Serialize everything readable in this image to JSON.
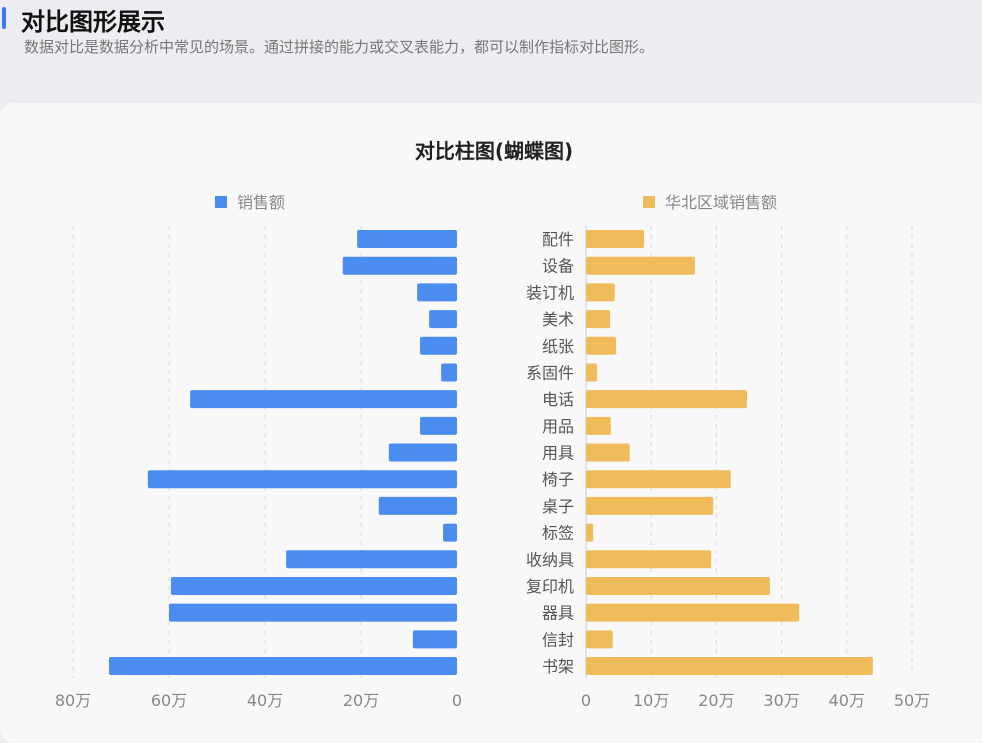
{
  "header": {
    "title": "对比图形展示",
    "subtitle": "数据对比是数据分析中常见的场景。通过拼接的能力或交叉表能力，都可以制作指标对比图形。"
  },
  "chart_data": {
    "type": "bar",
    "title": "对比柱图(蝴蝶图)",
    "categories": [
      "配件",
      "设备",
      "装订机",
      "美术",
      "纸张",
      "系固件",
      "电话",
      "用品",
      "用具",
      "椅子",
      "桌子",
      "标签",
      "收纳具",
      "复印机",
      "器具",
      "信封",
      "书架"
    ],
    "series": [
      {
        "name": "销售额",
        "color": "#4a8cf0",
        "direction": "left",
        "unit": "万",
        "values": [
          20.8,
          23.8,
          8.3,
          5.8,
          7.7,
          3.3,
          55.6,
          7.7,
          14.2,
          64.4,
          16.3,
          2.9,
          35.6,
          59.6,
          60.0,
          9.2,
          72.5
        ],
        "xlim": [
          0,
          80
        ],
        "ticks": [
          "0",
          "20万",
          "40万",
          "60万",
          "80万"
        ],
        "tick_values": [
          0,
          20,
          40,
          60,
          80
        ]
      },
      {
        "name": "华北区域销售额",
        "color": "#efbb5b",
        "direction": "right",
        "unit": "万",
        "values": [
          8.9,
          16.7,
          4.4,
          3.7,
          4.6,
          1.7,
          24.7,
          3.8,
          6.7,
          22.2,
          19.5,
          1.1,
          19.2,
          28.2,
          32.7,
          4.1,
          44.0
        ],
        "xlim": [
          0,
          50
        ],
        "ticks": [
          "0",
          "10万",
          "20万",
          "30万",
          "40万",
          "50万"
        ],
        "tick_values": [
          0,
          10,
          20,
          30,
          40,
          50
        ]
      }
    ],
    "grid": true,
    "legend": "top"
  }
}
